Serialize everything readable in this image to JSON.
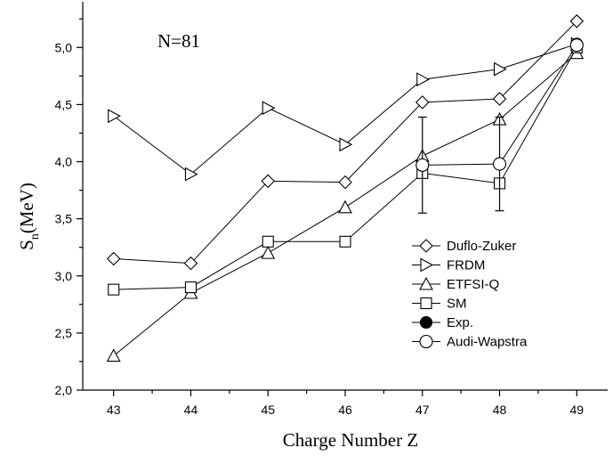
{
  "chart_data": {
    "type": "line",
    "annotation": "N=81",
    "xlabel": "Charge Number Z",
    "ylabel_main": "S",
    "ylabel_sub": "n",
    "ylabel_suffix": "(MeV)",
    "xlim": [
      42.6,
      49.4
    ],
    "ylim": [
      2.0,
      5.4
    ],
    "x_ticks": [
      43,
      44,
      45,
      46,
      47,
      48,
      49
    ],
    "x_tick_labels": [
      "43",
      "44",
      "45",
      "46",
      "47",
      "48",
      "49"
    ],
    "y_ticks": [
      2.0,
      2.5,
      3.0,
      3.5,
      4.0,
      4.5,
      5.0
    ],
    "y_tick_labels": [
      "2,0",
      "2,5",
      "3,0",
      "3,5",
      "4,0",
      "4,5",
      "5,0"
    ],
    "legend_position": "bottom-right",
    "series": [
      {
        "name": "Duflo-Zuker",
        "marker": "diamond",
        "x": [
          43,
          44,
          45,
          46,
          47,
          48,
          49
        ],
        "y": [
          3.15,
          3.11,
          3.83,
          3.82,
          4.52,
          4.55,
          5.23
        ]
      },
      {
        "name": "FRDM",
        "marker": "triangle-right",
        "x": [
          43,
          44,
          45,
          46,
          47,
          48,
          49
        ],
        "y": [
          4.4,
          3.89,
          4.47,
          4.15,
          4.72,
          4.81,
          5.03
        ]
      },
      {
        "name": "ETFSI-Q",
        "marker": "triangle-up",
        "x": [
          43,
          44,
          45,
          46,
          47,
          48,
          49
        ],
        "y": [
          2.3,
          2.85,
          3.2,
          3.6,
          4.05,
          4.37,
          4.95
        ]
      },
      {
        "name": "SM",
        "marker": "square",
        "x": [
          43,
          44,
          45,
          46,
          47,
          48,
          49
        ],
        "y": [
          2.88,
          2.9,
          3.3,
          3.3,
          3.9,
          3.81,
          5.0
        ]
      },
      {
        "name": "Exp.",
        "marker": "circle-filled",
        "x": [
          49
        ],
        "y": [
          5.03
        ]
      },
      {
        "name": "Audi-Wapstra",
        "marker": "circle",
        "x": [
          47,
          48,
          49
        ],
        "y": [
          3.97,
          3.98,
          5.02
        ],
        "error_low": [
          3.55,
          3.57,
          null
        ],
        "error_high": [
          4.39,
          4.39,
          null
        ]
      }
    ]
  }
}
